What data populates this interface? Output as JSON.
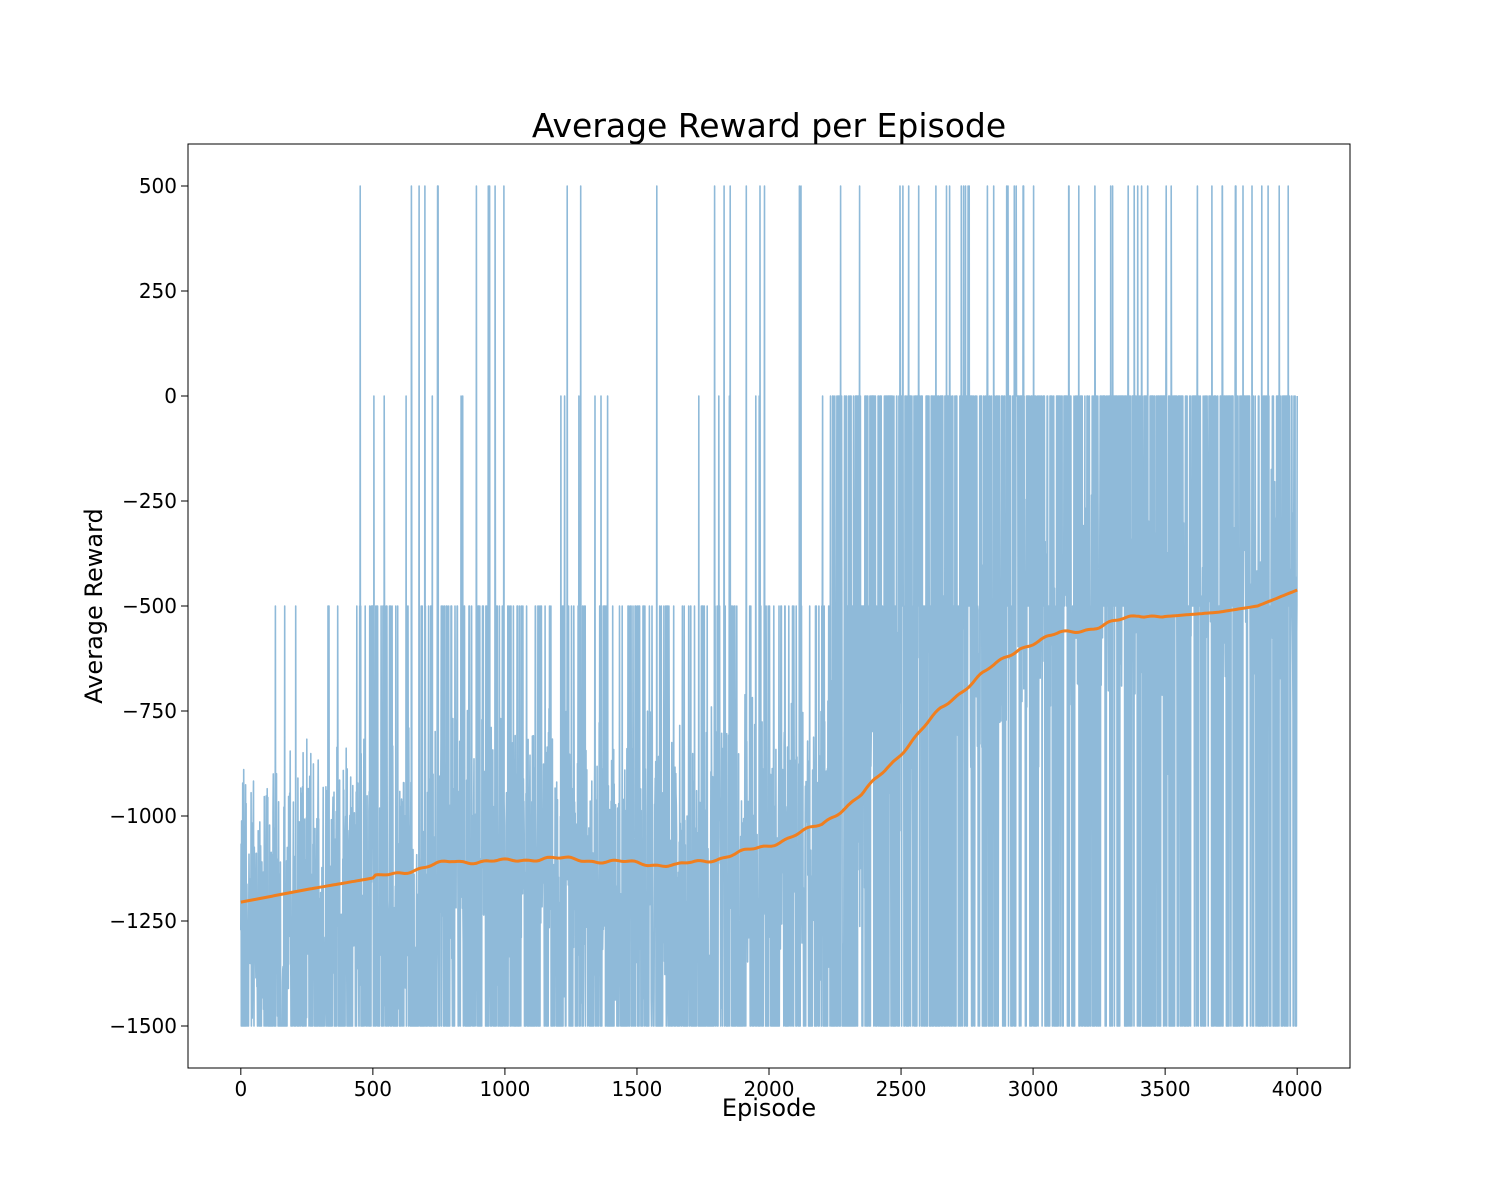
{
  "chart_data": {
    "type": "line",
    "title": "Average Reward per Episode",
    "xlabel": "Episode",
    "ylabel": "Average Reward",
    "xlim": [
      -200,
      4200
    ],
    "ylim": [
      -1600,
      600
    ],
    "grid": false,
    "legend": "none",
    "x_ticks": [
      0,
      500,
      1000,
      1500,
      2000,
      2500,
      3000,
      3500,
      4000
    ],
    "x_tick_labels": [
      "0",
      "500",
      "1000",
      "1500",
      "2000",
      "2500",
      "3000",
      "3500",
      "4000"
    ],
    "y_ticks": [
      500,
      250,
      0,
      -250,
      -500,
      -750,
      -1000,
      -1250,
      -1500
    ],
    "y_tick_labels": [
      "500",
      "250",
      "0",
      "−250",
      "−500",
      "−750",
      "−1000",
      "−1250",
      "−1500"
    ],
    "series": [
      {
        "kind": "raw_reward",
        "color": "#8fbad9",
        "episodes": [
          0,
          4000
        ],
        "stages": [
          {
            "from": 0,
            "to": 450,
            "p_top": 0.0,
            "p_zero": 0.0,
            "p_m500": 0.02,
            "p_bottom": 0.3
          },
          {
            "from": 450,
            "to": 1800,
            "p_top": 0.015,
            "p_zero": 0.012,
            "p_m500": 0.1,
            "p_bottom": 0.3
          },
          {
            "from": 1800,
            "to": 2200,
            "p_top": 0.015,
            "p_zero": 0.008,
            "p_m500": 0.06,
            "p_bottom": 0.28
          },
          {
            "from": 2200,
            "to": 2500,
            "p_top": 0.01,
            "p_zero": 0.25,
            "p_m500": 0.15,
            "p_bottom": 0.3
          },
          {
            "from": 2500,
            "to": 4000,
            "p_top": 0.025,
            "p_zero": 0.28,
            "p_m500": 0.16,
            "p_bottom": 0.25
          }
        ],
        "max_value": 500,
        "min_value": -1500
      },
      {
        "kind": "moving_average",
        "color": "#f07f1f",
        "x": [
          0,
          250,
          480,
          600,
          800,
          1000,
          1150,
          1300,
          1500,
          1650,
          1800,
          2000,
          2200,
          2350,
          2500,
          2650,
          2800,
          2950,
          3100,
          3250,
          3400,
          3500,
          3700,
          3850,
          4000
        ],
        "y": [
          -1205,
          -1175,
          -1150,
          -1135,
          -1108,
          -1108,
          -1100,
          -1105,
          -1112,
          -1118,
          -1102,
          -1070,
          -1020,
          -950,
          -850,
          -745,
          -665,
          -600,
          -565,
          -550,
          -520,
          -525,
          -515,
          -500,
          -462
        ]
      }
    ]
  }
}
